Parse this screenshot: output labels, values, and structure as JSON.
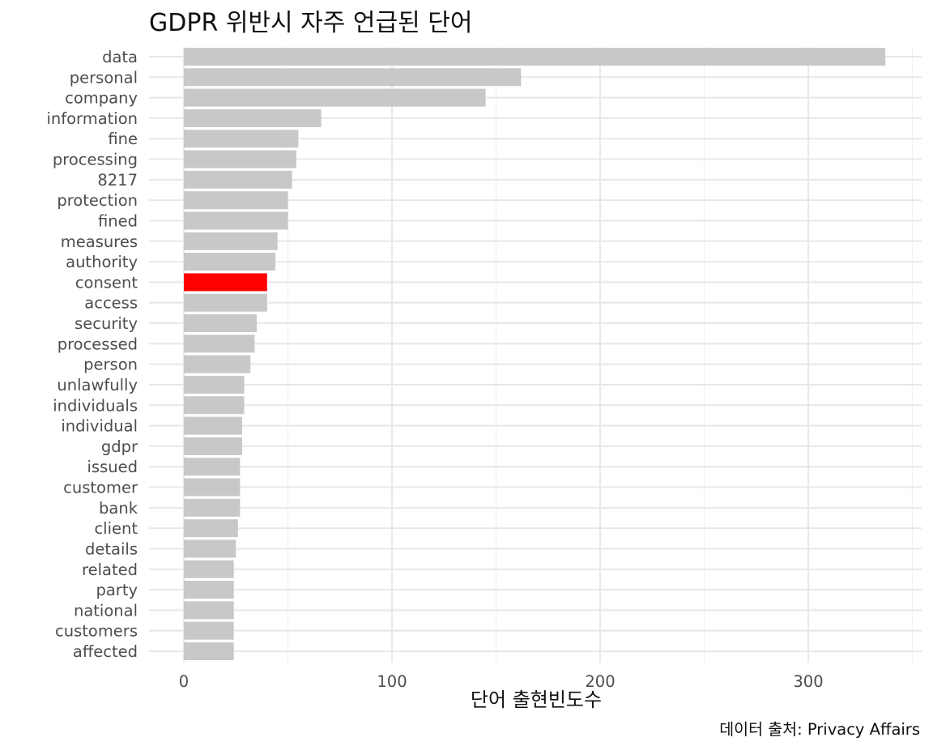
{
  "chart_data": {
    "type": "bar",
    "orientation": "horizontal",
    "title": "GDPR 위반시 자주 언급된 단어",
    "xlabel": "단어 출현빈도수",
    "ylabel": "",
    "caption": "데이터 출처: Privacy Affairs",
    "xlim": [
      0,
      350
    ],
    "xticks": [
      "0",
      "100",
      "200",
      "300"
    ],
    "grid": true,
    "legend": "none",
    "bar_color": "#c8c8c8",
    "highlight_color": "#ff0000",
    "highlight_category": "consent",
    "categories": [
      "data",
      "personal",
      "company",
      "information",
      "fine",
      "processing",
      "8217",
      "protection",
      "fined",
      "measures",
      "authority",
      "consent",
      "access",
      "security",
      "processed",
      "person",
      "unlawfully",
      "individuals",
      "individual",
      "gdpr",
      "issued",
      "customer",
      "bank",
      "client",
      "details",
      "related",
      "party",
      "national",
      "customers",
      "affected"
    ],
    "values": [
      337,
      162,
      145,
      66,
      55,
      54,
      52,
      50,
      50,
      45,
      44,
      40,
      40,
      35,
      34,
      32,
      29,
      29,
      28,
      28,
      27,
      27,
      27,
      26,
      25,
      24,
      24,
      24,
      24,
      24
    ]
  }
}
